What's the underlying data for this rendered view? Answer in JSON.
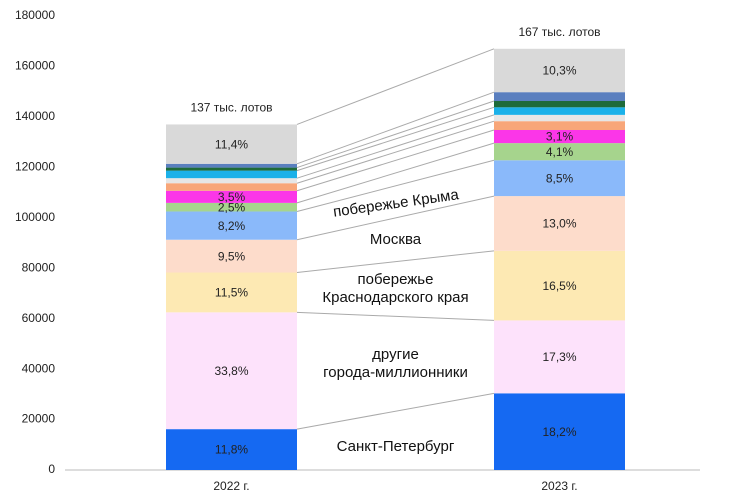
{
  "chart_data": {
    "type": "stacked_bar",
    "categories": [
      "2022 г.",
      "2023 г."
    ],
    "annotations": [
      "137 тыс. лотов",
      "167 тыс. лотов"
    ],
    "series": [
      {
        "name": "Санкт-Петербург",
        "color": "#1569f2",
        "values": [
          16200,
          30400
        ],
        "value_labels": [
          "11,8%",
          "18,2%"
        ]
      },
      {
        "name": "другие\nгорода-миллионники",
        "color": "#fde2fb",
        "values": [
          46300,
          28900
        ],
        "value_labels": [
          "33,8%",
          "17,3%"
        ]
      },
      {
        "name": "побережье\nКраснодарского края",
        "color": "#fde9b3",
        "values": [
          15800,
          27600
        ],
        "value_labels": [
          "11,5%",
          "16,5%"
        ]
      },
      {
        "name": "Москва",
        "color": "#fddccb",
        "values": [
          13000,
          21700
        ],
        "value_labels": [
          "9,5%",
          "13,0%"
        ]
      },
      {
        "name": "побережье Крыма",
        "color": "#8ab9fa",
        "values": [
          11200,
          14200
        ],
        "value_labels": [
          "8,2%",
          "8,5%"
        ]
      },
      {
        "color": "#a6d48d",
        "values": [
          3400,
          6800
        ],
        "value_labels": [
          "2,5%",
          "4,1%"
        ]
      },
      {
        "color": "#fb36e8",
        "values": [
          4800,
          5200
        ],
        "value_labels": [
          "3,5%",
          "3,1%"
        ]
      },
      {
        "color": "#f8a679",
        "values": [
          3000,
          3500
        ]
      },
      {
        "color": "#e6e6e6",
        "values": [
          2000,
          2500
        ]
      },
      {
        "color": "#1bb1e9",
        "values": [
          3000,
          3000
        ]
      },
      {
        "color": "#1e6b3a",
        "values": [
          1200,
          2500
        ]
      },
      {
        "color": "#5a7fbf",
        "values": [
          1500,
          3500
        ]
      },
      {
        "color": "#d9d9d9",
        "values": [
          15600,
          17200
        ],
        "value_labels": [
          "11,4%",
          "10,3%"
        ]
      }
    ],
    "ylim": [
      0,
      180000
    ],
    "yticks": [
      0,
      20000,
      40000,
      60000,
      80000,
      100000,
      120000,
      140000,
      160000,
      180000
    ],
    "grid": false
  }
}
